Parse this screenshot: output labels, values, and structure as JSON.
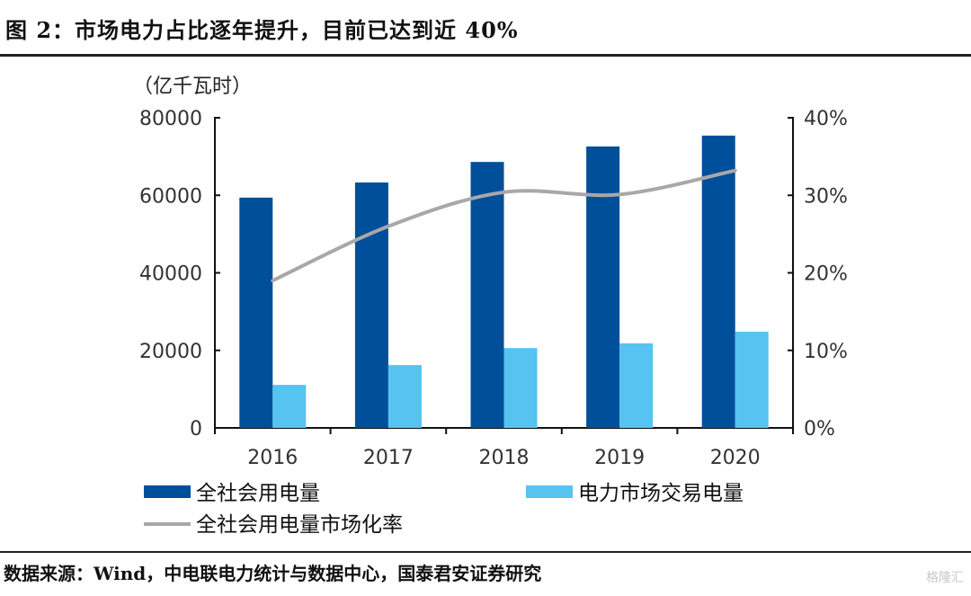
{
  "header": {
    "title": "图 2：市场电力占比逐年提升，目前已达到近 40%"
  },
  "footer": {
    "source": "数据来源：Wind，中电联电力统计与数据中心，国泰君安证券研究",
    "watermark": "格隆汇"
  },
  "colors": {
    "total": "#004f9a",
    "market": "#56c3f0",
    "rate": "#a8a8a8"
  },
  "chart_data": {
    "type": "bar",
    "title": "市场电力占比逐年提升，目前已达到近 40%",
    "ylabel": "（亿千瓦时）",
    "categories": [
      "2016",
      "2017",
      "2018",
      "2019",
      "2020"
    ],
    "ylim": [
      0,
      80000
    ],
    "yticks": [
      "0",
      "20000",
      "40000",
      "60000",
      "80000"
    ],
    "y2lim": [
      0,
      40
    ],
    "y2ticks": [
      "0%",
      "10%",
      "20%",
      "30%",
      "40%"
    ],
    "series": [
      {
        "name": "全社会用电量",
        "type": "bar",
        "axis": "left",
        "values": [
          59400,
          63300,
          68600,
          72600,
          75400
        ]
      },
      {
        "name": "电力市场交易电量",
        "type": "bar",
        "axis": "left",
        "values": [
          11100,
          16200,
          20600,
          21800,
          24800
        ]
      },
      {
        "name": "全社会用电量市场化率",
        "type": "line",
        "axis": "right",
        "unit": "%",
        "values": [
          19.0,
          26.0,
          30.4,
          30.1,
          33.2
        ]
      }
    ],
    "legend": [
      "全社会用电量",
      "电力市场交易电量",
      "全社会用电量市场化率"
    ],
    "legend_position": "bottom",
    "grid": false
  }
}
